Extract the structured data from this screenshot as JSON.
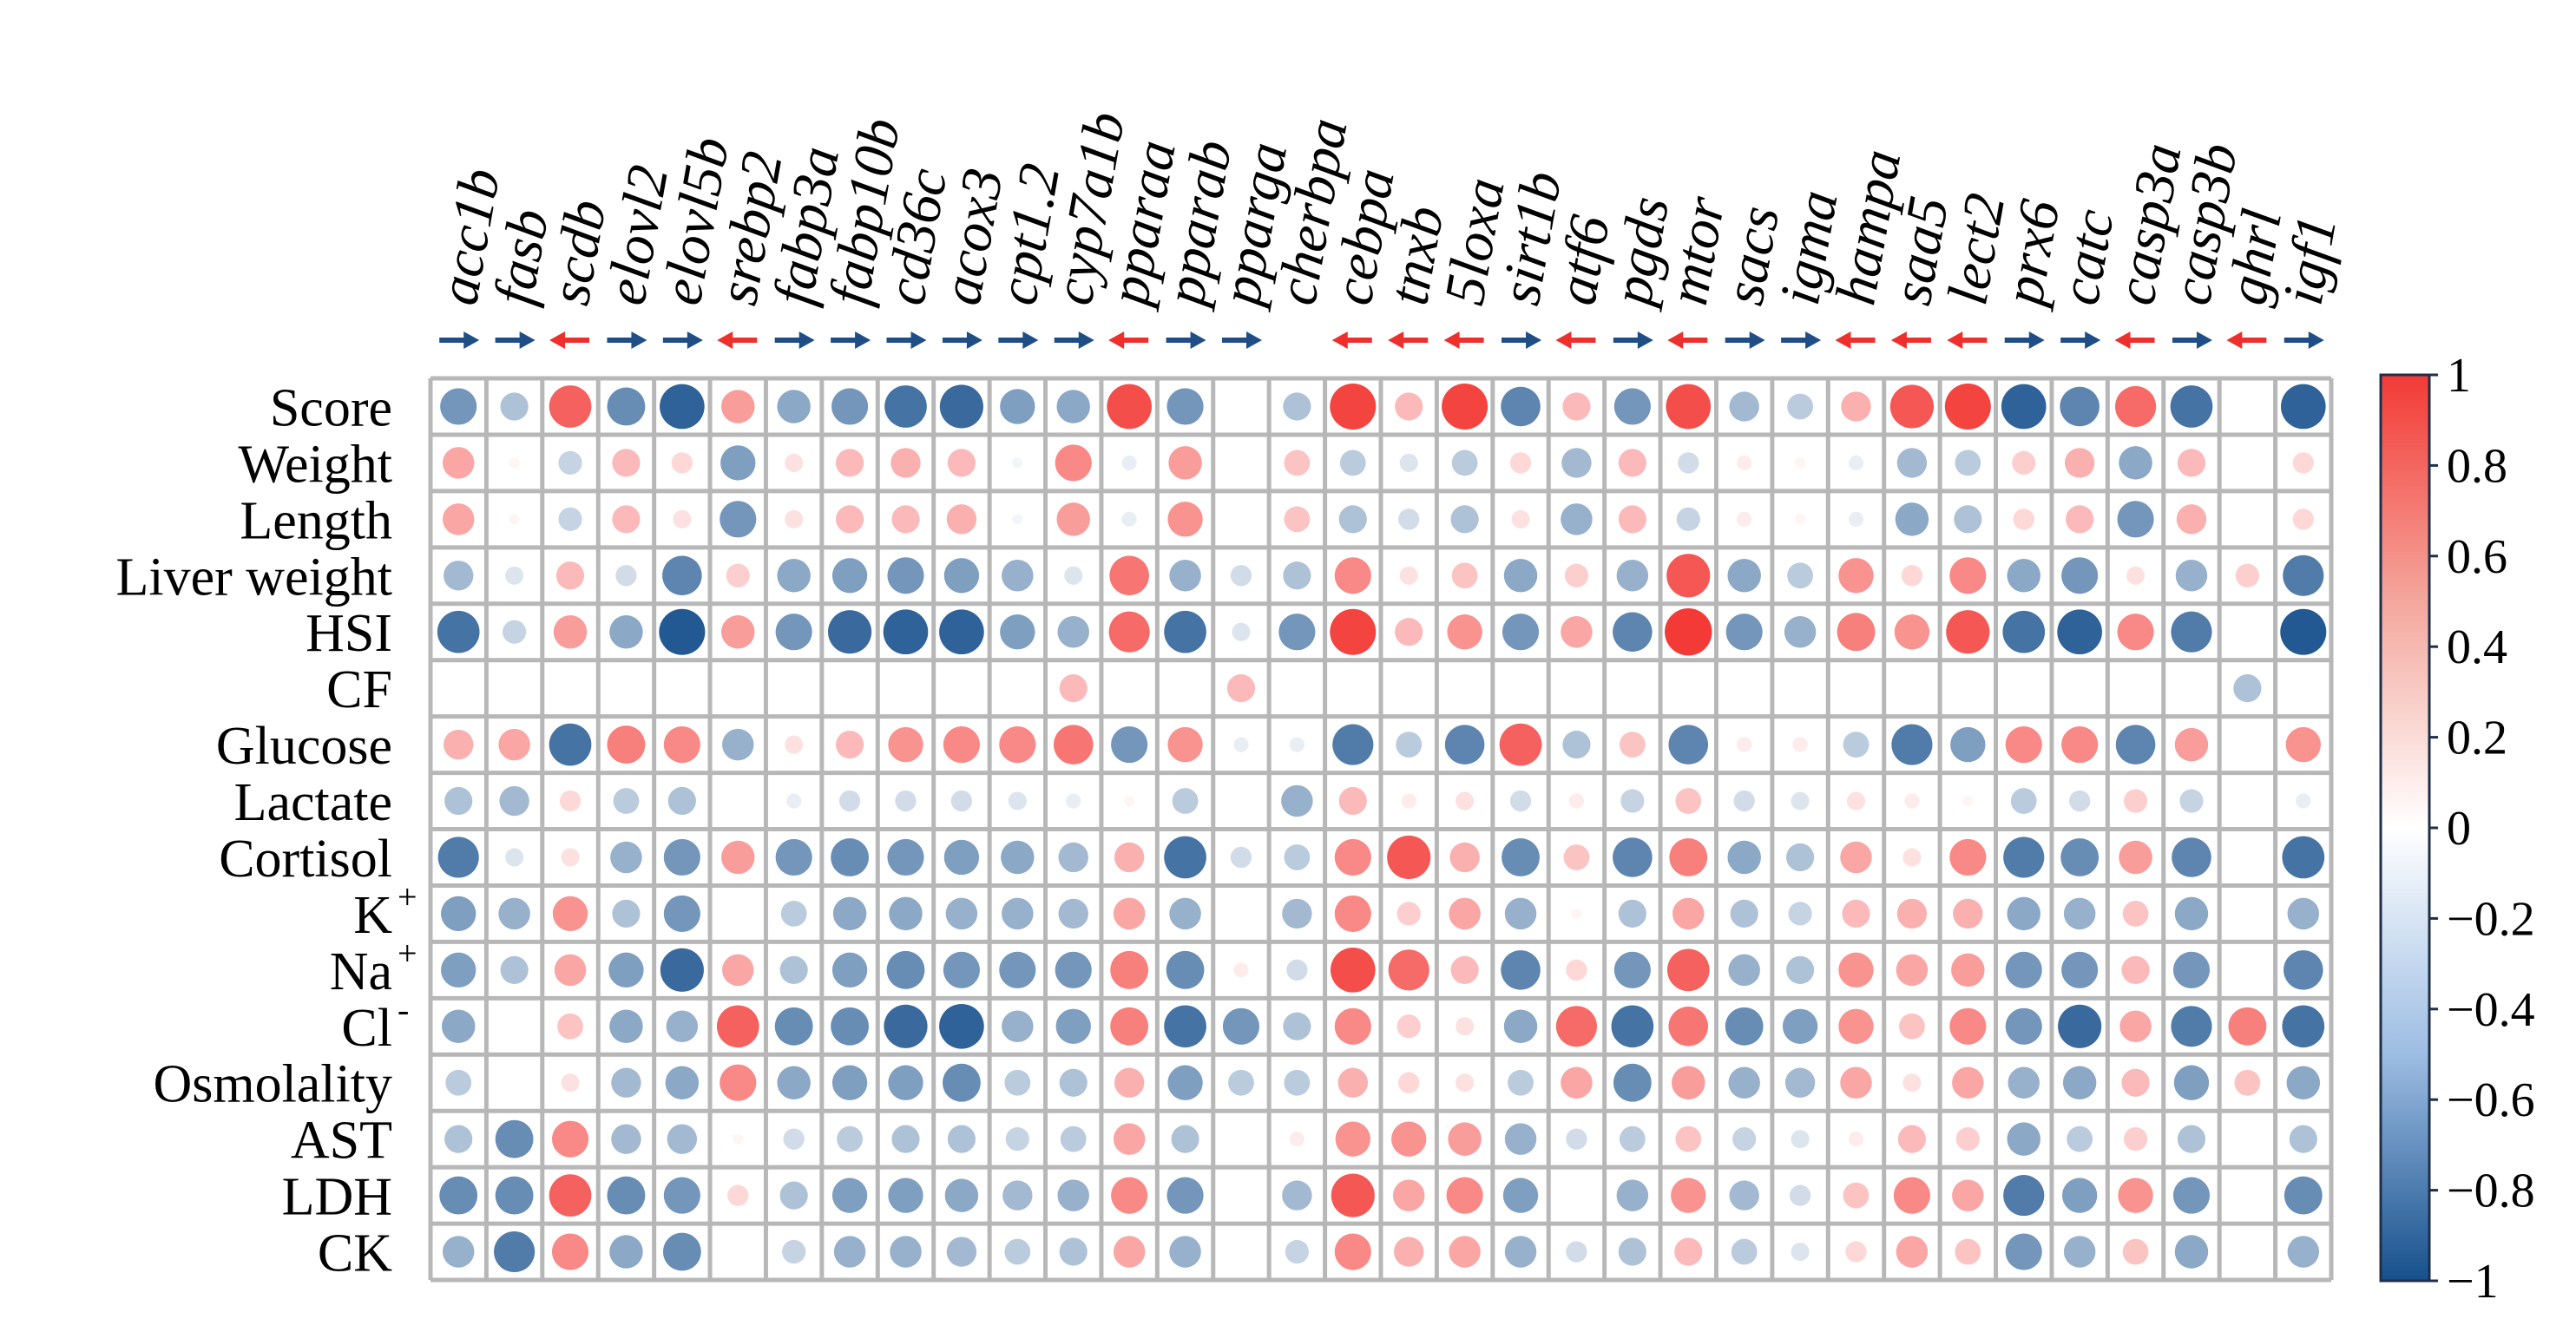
{
  "chart_data": {
    "type": "heatmap",
    "style": "circle correlation matrix",
    "columns": [
      "acc1b",
      "fasb",
      "scdb",
      "elovl2",
      "elovl5b",
      "srebp2",
      "fabp3a",
      "fabp10b",
      "cd36c",
      "acox3",
      "cpt1.2",
      "cyp7a1b",
      "pparaa",
      "pparab",
      "pparga",
      "cherbpa",
      "cebpa",
      "tnxb",
      "5loxa",
      "sirt1b",
      "atf6",
      "pgds",
      "mtor",
      "sacs",
      "igma",
      "hampa",
      "saa5",
      "lect2",
      "prx6",
      "catc",
      "casp3a",
      "casp3b",
      "ghrl",
      "igf1"
    ],
    "column_arrows": [
      "down",
      "down",
      "up",
      "down",
      "down",
      "up",
      "down",
      "down",
      "down",
      "down",
      "down",
      "down",
      "up",
      "down",
      "down",
      "",
      "up",
      "up",
      "up",
      "down",
      "up",
      "down",
      "up",
      "down",
      "down",
      "up",
      "up",
      "up",
      "down",
      "down",
      "up",
      "down",
      "up",
      "down"
    ],
    "rows": [
      {
        "label": "Score",
        "sup": ""
      },
      {
        "label": "Weight",
        "sup": ""
      },
      {
        "label": "Length",
        "sup": ""
      },
      {
        "label": "Liver weight",
        "sup": ""
      },
      {
        "label": "HSI",
        "sup": ""
      },
      {
        "label": "CF",
        "sup": ""
      },
      {
        "label": "Glucose",
        "sup": ""
      },
      {
        "label": "Lactate",
        "sup": ""
      },
      {
        "label": "Cortisol",
        "sup": ""
      },
      {
        "label": "K",
        "sup": "+"
      },
      {
        "label": "Na",
        "sup": "+"
      },
      {
        "label": "Cl",
        "sup": "-"
      },
      {
        "label": "Osmolality",
        "sup": ""
      },
      {
        "label": "AST",
        "sup": ""
      },
      {
        "label": "LDH",
        "sup": ""
      },
      {
        "label": "CK",
        "sup": ""
      }
    ],
    "values": [
      [
        -0.6,
        -0.35,
        0.8,
        -0.65,
        -0.9,
        0.5,
        -0.5,
        -0.6,
        -0.8,
        -0.85,
        -0.55,
        -0.5,
        0.9,
        -0.6,
        0.0,
        -0.35,
        0.95,
        0.35,
        0.95,
        -0.7,
        0.35,
        -0.6,
        0.9,
        -0.4,
        -0.3,
        0.4,
        0.85,
        0.95,
        -0.9,
        -0.7,
        0.75,
        -0.8,
        0.0,
        -0.9
      ],
      [
        0.45,
        0.05,
        -0.25,
        0.35,
        0.2,
        -0.55,
        0.15,
        0.35,
        0.4,
        0.35,
        -0.05,
        0.6,
        -0.1,
        0.5,
        0.0,
        0.3,
        -0.3,
        -0.15,
        -0.3,
        0.2,
        -0.4,
        0.35,
        -0.2,
        0.1,
        0.05,
        -0.1,
        -0.4,
        -0.3,
        0.25,
        0.4,
        -0.5,
        0.35,
        0.0,
        0.2
      ],
      [
        0.45,
        0.05,
        -0.25,
        0.35,
        0.15,
        -0.6,
        0.15,
        0.35,
        0.35,
        0.4,
        -0.05,
        0.5,
        -0.1,
        0.55,
        0.0,
        0.3,
        -0.35,
        -0.2,
        -0.35,
        0.15,
        -0.45,
        0.35,
        -0.25,
        0.1,
        0.05,
        -0.1,
        -0.5,
        -0.35,
        0.2,
        0.35,
        -0.6,
        0.4,
        0.0,
        0.2
      ],
      [
        -0.4,
        -0.15,
        0.35,
        -0.2,
        -0.7,
        0.25,
        -0.5,
        -0.55,
        -0.6,
        -0.55,
        -0.45,
        -0.15,
        0.7,
        -0.45,
        -0.2,
        -0.35,
        0.6,
        0.15,
        0.3,
        -0.5,
        0.25,
        -0.45,
        0.85,
        -0.5,
        -0.3,
        0.55,
        0.2,
        0.6,
        -0.5,
        -0.6,
        0.15,
        -0.45,
        0.25,
        -0.75
      ],
      [
        -0.8,
        -0.25,
        0.5,
        -0.5,
        -0.95,
        0.5,
        -0.6,
        -0.85,
        -0.9,
        -0.9,
        -0.55,
        -0.45,
        0.75,
        -0.8,
        -0.15,
        -0.6,
        0.95,
        0.35,
        0.55,
        -0.6,
        0.45,
        -0.7,
        1.0,
        -0.6,
        -0.45,
        0.65,
        0.55,
        0.85,
        -0.8,
        -0.9,
        0.6,
        -0.75,
        0.0,
        -0.95
      ],
      [
        0.0,
        0.0,
        0.0,
        0.0,
        0.0,
        0.0,
        0.0,
        0.0,
        0.0,
        0.0,
        0.0,
        0.35,
        0.0,
        0.0,
        0.35,
        0.0,
        0.0,
        0.0,
        0.0,
        0.0,
        0.0,
        0.0,
        0.0,
        0.0,
        0.0,
        0.0,
        0.0,
        0.0,
        0.0,
        0.0,
        0.0,
        0.0,
        -0.35,
        0.0
      ],
      [
        0.4,
        0.45,
        -0.8,
        0.65,
        0.6,
        -0.45,
        0.15,
        0.35,
        0.55,
        0.6,
        0.6,
        0.7,
        -0.6,
        0.55,
        -0.1,
        -0.1,
        -0.75,
        -0.3,
        -0.7,
        0.8,
        -0.35,
        0.3,
        -0.7,
        0.1,
        0.1,
        -0.3,
        -0.75,
        -0.55,
        0.6,
        0.6,
        -0.7,
        0.5,
        0.0,
        0.55
      ],
      [
        -0.35,
        -0.4,
        0.2,
        -0.3,
        -0.35,
        0.0,
        -0.1,
        -0.2,
        -0.2,
        -0.2,
        -0.15,
        -0.1,
        0.05,
        -0.3,
        0.0,
        -0.45,
        0.35,
        0.1,
        0.15,
        -0.2,
        0.1,
        -0.25,
        0.3,
        -0.2,
        -0.15,
        0.15,
        0.1,
        0.05,
        -0.3,
        -0.2,
        0.25,
        -0.25,
        0.0,
        -0.1
      ],
      [
        -0.75,
        -0.15,
        0.15,
        -0.45,
        -0.6,
        0.5,
        -0.6,
        -0.65,
        -0.6,
        -0.55,
        -0.5,
        -0.4,
        0.4,
        -0.8,
        -0.2,
        -0.3,
        0.6,
        0.85,
        0.4,
        -0.65,
        0.3,
        -0.7,
        0.65,
        -0.5,
        -0.35,
        0.45,
        0.15,
        0.6,
        -0.75,
        -0.65,
        0.5,
        -0.7,
        0.0,
        -0.8
      ],
      [
        -0.55,
        -0.45,
        0.55,
        -0.35,
        -0.6,
        0.0,
        -0.3,
        -0.5,
        -0.5,
        -0.45,
        -0.45,
        -0.4,
        0.45,
        -0.45,
        0.0,
        -0.4,
        0.6,
        0.25,
        0.45,
        -0.45,
        0.05,
        -0.35,
        0.45,
        -0.35,
        -0.25,
        0.35,
        0.4,
        0.4,
        -0.5,
        -0.45,
        0.3,
        -0.5,
        0.0,
        -0.45
      ],
      [
        -0.55,
        -0.35,
        0.45,
        -0.55,
        -0.85,
        0.45,
        -0.35,
        -0.55,
        -0.65,
        -0.6,
        -0.6,
        -0.6,
        0.65,
        -0.65,
        0.1,
        -0.2,
        0.9,
        0.75,
        0.35,
        -0.7,
        0.2,
        -0.6,
        0.8,
        -0.45,
        -0.35,
        0.55,
        0.45,
        0.5,
        -0.6,
        -0.6,
        0.35,
        -0.6,
        0.0,
        -0.7
      ],
      [
        -0.5,
        0.0,
        0.3,
        -0.5,
        -0.45,
        0.8,
        -0.65,
        -0.65,
        -0.85,
        -0.9,
        -0.45,
        -0.55,
        0.65,
        -0.8,
        -0.6,
        -0.35,
        0.6,
        0.25,
        0.15,
        -0.5,
        0.75,
        -0.8,
        0.7,
        -0.65,
        -0.55,
        0.55,
        0.3,
        0.6,
        -0.6,
        -0.85,
        0.45,
        -0.75,
        0.65,
        -0.8
      ],
      [
        -0.3,
        0.0,
        0.15,
        -0.4,
        -0.5,
        0.6,
        -0.5,
        -0.55,
        -0.55,
        -0.65,
        -0.3,
        -0.35,
        0.4,
        -0.55,
        -0.3,
        -0.3,
        0.4,
        0.2,
        0.15,
        -0.3,
        0.45,
        -0.65,
        0.5,
        -0.45,
        -0.4,
        0.45,
        0.15,
        0.45,
        -0.45,
        -0.5,
        0.35,
        -0.55,
        0.3,
        -0.5
      ],
      [
        -0.35,
        -0.65,
        0.6,
        -0.4,
        -0.4,
        0.05,
        -0.2,
        -0.3,
        -0.35,
        -0.35,
        -0.25,
        -0.3,
        0.45,
        -0.35,
        0.0,
        0.1,
        0.55,
        0.55,
        0.5,
        -0.45,
        -0.2,
        -0.3,
        0.3,
        -0.25,
        -0.15,
        0.1,
        0.35,
        0.25,
        -0.5,
        -0.3,
        0.25,
        -0.35,
        0.0,
        -0.35
      ],
      [
        -0.65,
        -0.65,
        0.8,
        -0.65,
        -0.6,
        0.2,
        -0.35,
        -0.55,
        -0.55,
        -0.5,
        -0.4,
        -0.45,
        0.6,
        -0.6,
        0.0,
        -0.4,
        0.85,
        0.45,
        0.6,
        -0.55,
        0.0,
        -0.45,
        0.55,
        -0.4,
        -0.2,
        0.3,
        0.6,
        0.45,
        -0.75,
        -0.55,
        0.55,
        -0.6,
        0.0,
        -0.65
      ],
      [
        -0.45,
        -0.75,
        0.6,
        -0.5,
        -0.65,
        0.0,
        -0.25,
        -0.45,
        -0.45,
        -0.4,
        -0.3,
        -0.35,
        0.45,
        -0.45,
        0.0,
        -0.25,
        0.6,
        0.4,
        0.45,
        -0.45,
        -0.2,
        -0.35,
        0.35,
        -0.3,
        -0.15,
        0.2,
        0.45,
        0.3,
        -0.6,
        -0.45,
        0.3,
        -0.5,
        0.0,
        -0.45
      ]
    ],
    "colorbar": {
      "range": [
        -1,
        1
      ],
      "ticks": [
        "1",
        "0.8",
        "0.6",
        "0.4",
        "0.2",
        "0",
        "−0.2",
        "−0.4",
        "−0.6",
        "−0.8",
        "−1"
      ],
      "colors": {
        "low": "#17508c",
        "mid": "#ffffff",
        "high": "#f33a36"
      }
    },
    "colors": {
      "arrow_up": "#ee2f2b",
      "arrow_down": "#1f4e86",
      "grid": "#b7b7b7"
    }
  }
}
